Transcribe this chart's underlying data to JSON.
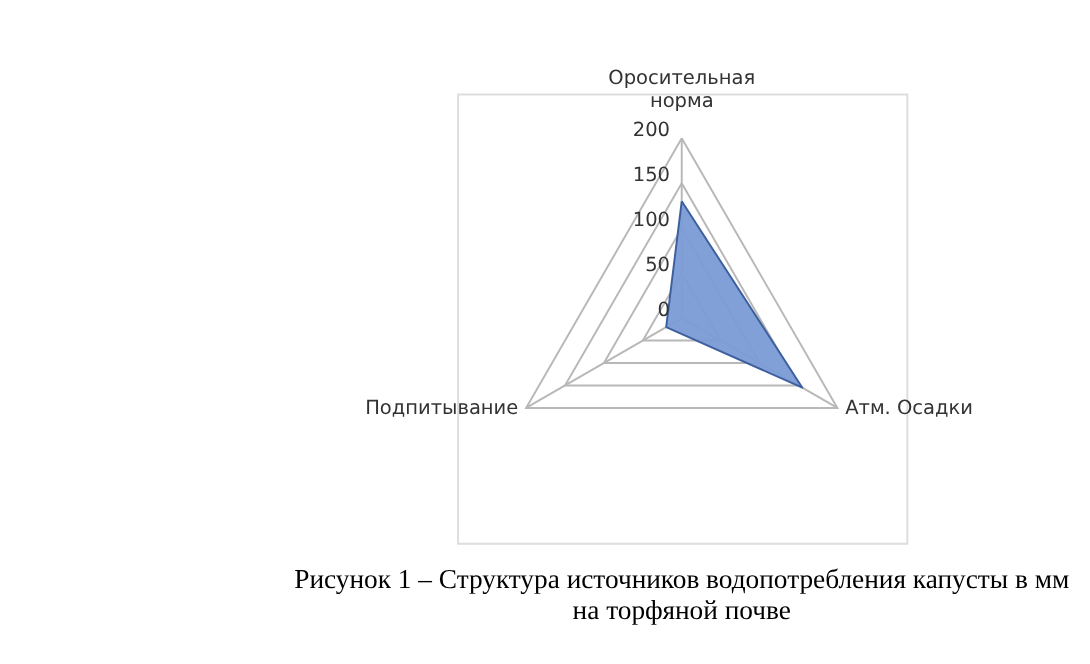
{
  "chart_data": {
    "type": "radar",
    "title": "Рисунок 1 – Структура источников водопотребления капусты в мм\nна торфяной почве",
    "categories": [
      "Оросительная\nнорма",
      "Атм. Осадки",
      "Подпитывание"
    ],
    "series": [
      {
        "color": "#7b9bd6",
        "values": [
          130,
          155,
          20
        ]
      }
    ],
    "ylim": [
      0,
      200
    ],
    "yticks": [
      0,
      50,
      100,
      150,
      200
    ],
    "grid": true,
    "legend": false,
    "marker": "none"
  }
}
